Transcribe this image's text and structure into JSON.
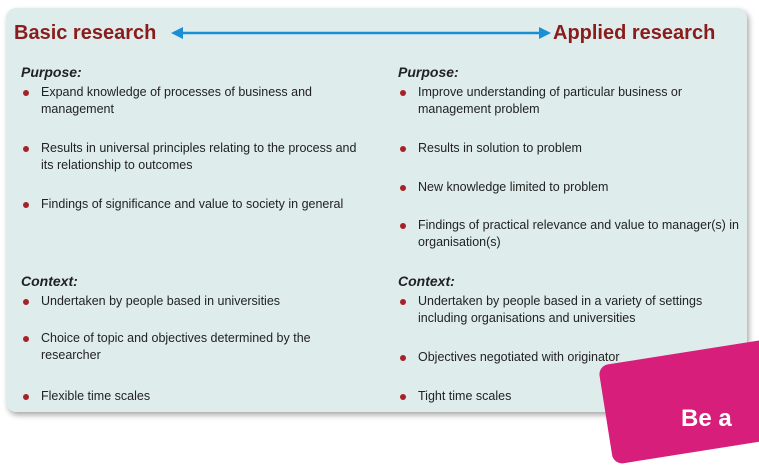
{
  "header": {
    "left_title": "Basic research",
    "right_title": "Applied research"
  },
  "basic": {
    "purpose_label": "Purpose:",
    "purpose_items": [
      "Expand knowledge of processes of business and management",
      "Results in universal principles relating to the process and its relationship to outcomes",
      "Findings of significance and value to society in general"
    ],
    "context_label": "Context:",
    "context_items": [
      "Undertaken by people based in universities",
      "Choice of topic and objectives determined by the researcher",
      "Flexible time scales"
    ]
  },
  "applied": {
    "purpose_label": "Purpose:",
    "purpose_items": [
      "Improve understanding of particular business or management problem",
      "Results in solution to problem",
      "New knowledge limited to problem",
      "Findings of practical relevance and value to manager(s) in organisation(s)"
    ],
    "context_label": "Context:",
    "context_items": [
      "Undertaken by people based in a variety of settings including organisations and universities",
      "Objectives negotiated with originator",
      "Tight time scales"
    ]
  },
  "badge": {
    "text": "Be a"
  },
  "colors": {
    "heading": "#8a1c1c",
    "arrow": "#1b8fd6",
    "bullet": "#a8202a",
    "panel": "#dfecec",
    "badge": "#d61e7a"
  }
}
